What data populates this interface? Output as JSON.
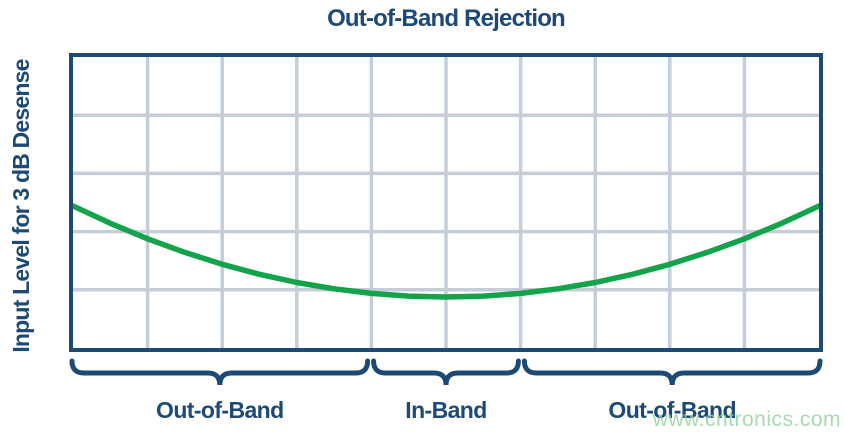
{
  "title": "Out-of-Band Rejection",
  "y_axis_label": "Input Level for 3 dB Desense",
  "watermark_text": "www.cntronics.com",
  "colors": {
    "navy": "#1c4a74",
    "curve_green": "#12a34b",
    "gridline": "#c4cdd8",
    "watermark_green": "#a9dcb0",
    "background": "#ffffff"
  },
  "chart_data": {
    "type": "line",
    "title": "Out-of-Band Rejection",
    "xlabel": "",
    "ylabel": "Input Level for 3 dB Desense",
    "x_range": [
      0,
      10
    ],
    "y_range": [
      0,
      5
    ],
    "grid": true,
    "x_gridlines": [
      1,
      2,
      3,
      4,
      5,
      6,
      7,
      8,
      9
    ],
    "y_gridlines": [
      1,
      2,
      3,
      4
    ],
    "axis_tick_labels": "none (schematic chart, no numeric ticks shown)",
    "legend": "none",
    "series": [
      {
        "name": "input-level-for-3db-desense",
        "color": "#12a34b",
        "shape": "u-shaped parabola, minimum in-band, rising out-of-band",
        "x": [
          0,
          0.5,
          1,
          1.5,
          2,
          2.5,
          3,
          3.5,
          4,
          4.5,
          5,
          5.5,
          6,
          6.5,
          7,
          7.5,
          8,
          8.5,
          9,
          9.5,
          10
        ],
        "y": [
          2.44,
          2.143,
          1.877,
          1.642,
          1.439,
          1.267,
          1.126,
          1.017,
          0.939,
          0.892,
          0.876,
          0.892,
          0.939,
          1.017,
          1.126,
          1.267,
          1.439,
          1.642,
          1.877,
          2.143,
          2.44
        ]
      }
    ],
    "bands": [
      {
        "label": "Out-of-Band",
        "x_start": 0,
        "x_end": 4
      },
      {
        "label": "In-Band",
        "x_start": 4,
        "x_end": 6
      },
      {
        "label": "Out-of-Band",
        "x_start": 6,
        "x_end": 10
      }
    ]
  }
}
